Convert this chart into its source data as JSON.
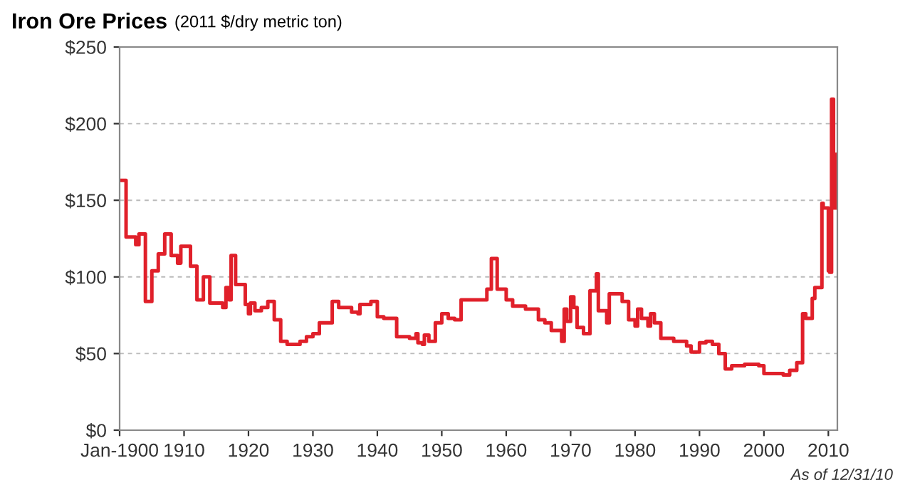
{
  "chart_data": {
    "type": "step",
    "title": "Iron Ore Prices",
    "subtitle": "(2011 $/dry metric ton)",
    "annotations": [
      "As of 12/31/10"
    ],
    "x": [
      1900,
      1901,
      1902.5,
      1903,
      1904,
      1905,
      1906,
      1907,
      1908,
      1909,
      1909.5,
      1911,
      1912,
      1913,
      1914,
      1916,
      1916.5,
      1917,
      1917.3,
      1918,
      1919.5,
      1920,
      1920.3,
      1921,
      1922,
      1923,
      1924,
      1925,
      1926,
      1928,
      1929,
      1930,
      1931,
      1933,
      1934,
      1936,
      1937,
      1937.3,
      1939,
      1940,
      1941,
      1943,
      1945,
      1946,
      1946.3,
      1947,
      1947.3,
      1948,
      1949,
      1950,
      1951,
      1952,
      1953,
      1955.7,
      1957,
      1957.7,
      1958.6,
      1960,
      1961,
      1963,
      1965,
      1966,
      1967,
      1968.6,
      1969,
      1969.4,
      1970,
      1970.5,
      1971,
      1972,
      1973,
      1974,
      1974.3,
      1975.6,
      1976,
      1978,
      1979,
      1980,
      1980.4,
      1981,
      1982,
      1982.4,
      1983,
      1984,
      1986,
      1988,
      1988.7,
      1990,
      1991,
      1992,
      1993,
      1994,
      1995,
      1997,
      1999.2,
      2000,
      2003,
      2004,
      2005.1,
      2006,
      2006.5,
      2007.5,
      2007.9,
      2009,
      2009.2,
      2010,
      2010.2,
      2010.5,
      2010.8,
      2011.2
    ],
    "values": [
      163,
      126,
      121,
      128,
      84,
      104,
      115,
      128,
      114,
      109,
      120,
      107,
      85,
      100,
      83,
      80,
      93,
      85,
      114,
      95,
      82,
      76,
      83,
      78,
      80,
      84,
      72,
      58,
      56,
      58,
      61,
      63,
      70,
      84,
      80,
      77,
      76,
      82,
      84,
      74,
      73,
      61,
      60,
      63,
      57,
      56,
      62,
      58,
      70,
      76,
      73,
      72,
      85,
      85,
      92,
      112,
      92,
      85,
      81,
      79,
      72,
      70,
      65,
      58,
      79,
      71,
      87,
      80,
      67,
      63,
      91,
      102,
      78,
      70,
      89,
      84,
      72,
      68,
      79,
      73,
      68,
      76,
      70,
      60,
      58,
      55,
      51,
      57,
      58,
      56,
      50,
      40,
      42,
      43,
      42,
      37,
      36,
      39,
      44,
      76,
      73,
      86,
      93,
      148,
      145,
      104,
      103,
      216,
      145,
      180
    ],
    "color": "#e0202a",
    "xlim": [
      1900,
      2011.4
    ],
    "xticks": [
      {
        "value": 1900,
        "label": "Jan-1900"
      },
      1910,
      1920,
      1930,
      1940,
      1950,
      1960,
      1970,
      1980,
      1990,
      2000,
      2010
    ],
    "ylim": [
      0,
      250
    ],
    "yticks": [
      {
        "value": 0,
        "label": "$0"
      },
      {
        "value": 50,
        "label": "$50"
      },
      {
        "value": 100,
        "label": "$100"
      },
      {
        "value": 150,
        "label": "$150"
      },
      {
        "value": 200,
        "label": "$200"
      },
      {
        "value": 250,
        "label": "$250"
      }
    ],
    "grid": "y",
    "line_style": "solid"
  }
}
